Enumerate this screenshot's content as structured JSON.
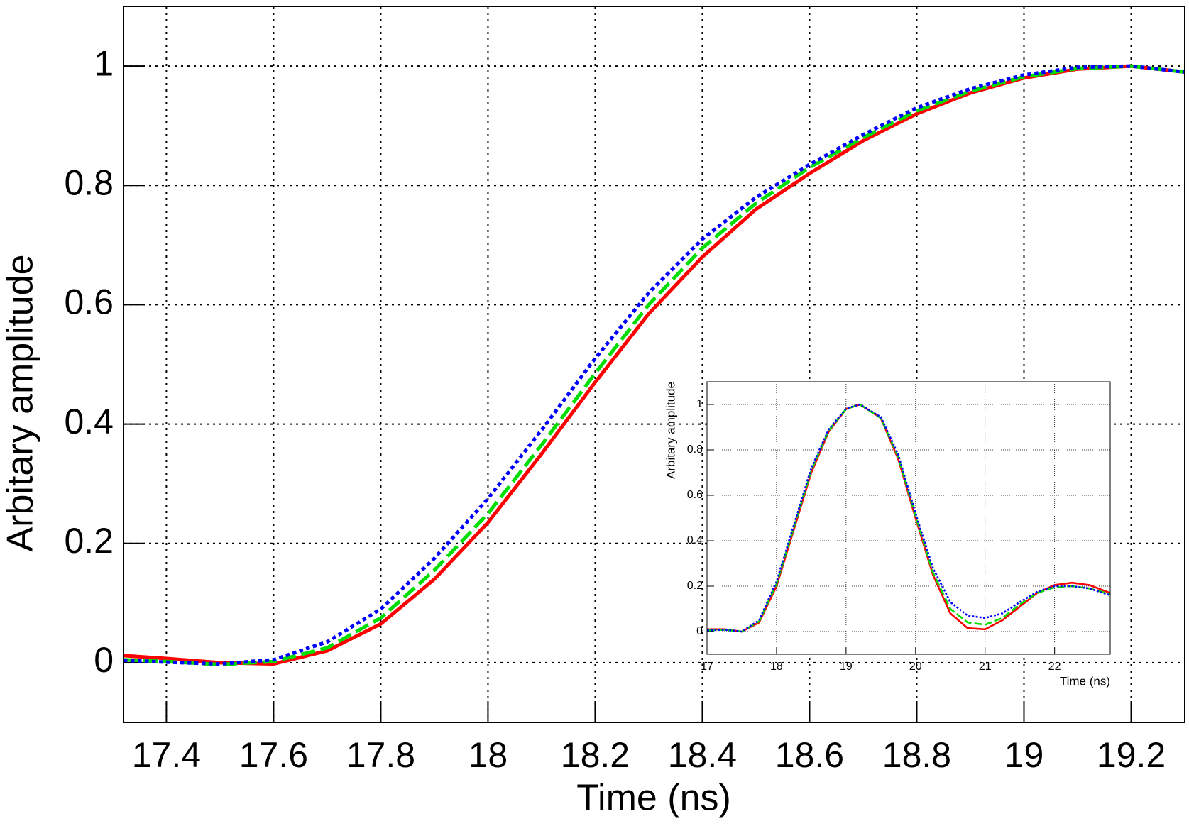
{
  "chart_data": [
    {
      "type": "line",
      "xlabel": "Time (ns)",
      "ylabel": "Arbitary amplitude",
      "xlim": [
        17.32,
        19.3
      ],
      "ylim": [
        -0.1,
        1.1
      ],
      "xticks": [
        17.4,
        17.6,
        17.8,
        18,
        18.2,
        18.4,
        18.6,
        18.8,
        19,
        19.2
      ],
      "yticks": [
        0,
        0.2,
        0.4,
        0.6,
        0.8,
        1
      ],
      "grid": true,
      "x": [
        17.32,
        17.4,
        17.5,
        17.6,
        17.7,
        17.8,
        17.9,
        18.0,
        18.1,
        18.2,
        18.3,
        18.4,
        18.5,
        18.6,
        18.7,
        18.8,
        18.9,
        19.0,
        19.1,
        19.2,
        19.3
      ],
      "series": [
        {
          "color": "#ff0000",
          "dash": "solid",
          "values": [
            0.012,
            0.007,
            0.0,
            -0.002,
            0.02,
            0.065,
            0.14,
            0.235,
            0.35,
            0.47,
            0.585,
            0.68,
            0.76,
            0.82,
            0.875,
            0.92,
            0.955,
            0.98,
            0.995,
            1.0,
            0.99
          ]
        },
        {
          "color": "#00dd00",
          "dash": "dashed",
          "values": [
            0.005,
            0.002,
            -0.003,
            0.002,
            0.025,
            0.075,
            0.155,
            0.25,
            0.365,
            0.485,
            0.6,
            0.695,
            0.77,
            0.83,
            0.88,
            0.925,
            0.958,
            0.982,
            0.996,
            1.0,
            0.99
          ]
        },
        {
          "color": "#0000ff",
          "dash": "dotted",
          "values": [
            0.004,
            0.001,
            -0.002,
            0.005,
            0.035,
            0.09,
            0.175,
            0.275,
            0.39,
            0.51,
            0.62,
            0.71,
            0.78,
            0.835,
            0.885,
            0.93,
            0.962,
            0.985,
            0.998,
            1.0,
            0.99
          ]
        }
      ]
    },
    {
      "type": "line",
      "xlabel": "Time (ns)",
      "ylabel": "Arbitary amplitude",
      "xlim": [
        17,
        22.8
      ],
      "ylim": [
        -0.1,
        1.1
      ],
      "xticks": [
        17,
        18,
        19,
        20,
        21,
        22
      ],
      "yticks": [
        0,
        0.2,
        0.4,
        0.6,
        0.8,
        1
      ],
      "grid": true,
      "x": [
        17,
        17.25,
        17.5,
        17.75,
        18,
        18.25,
        18.5,
        18.75,
        19,
        19.2,
        19.5,
        19.75,
        20,
        20.25,
        20.5,
        20.75,
        21,
        21.25,
        21.5,
        21.75,
        22,
        22.25,
        22.5,
        22.8
      ],
      "series": [
        {
          "color": "#ff0000",
          "dash": "solid",
          "values": [
            0.01,
            0.01,
            0.0,
            0.04,
            0.2,
            0.45,
            0.7,
            0.88,
            0.98,
            1.0,
            0.94,
            0.76,
            0.5,
            0.25,
            0.08,
            0.015,
            0.01,
            0.05,
            0.11,
            0.17,
            0.205,
            0.215,
            0.205,
            0.17
          ]
        },
        {
          "color": "#00dd00",
          "dash": "dashed",
          "values": [
            0.005,
            0.008,
            0.0,
            0.045,
            0.21,
            0.46,
            0.71,
            0.885,
            0.98,
            1.0,
            0.94,
            0.77,
            0.51,
            0.26,
            0.1,
            0.04,
            0.03,
            0.06,
            0.12,
            0.17,
            0.195,
            0.2,
            0.19,
            0.165
          ]
        },
        {
          "color": "#0000ff",
          "dash": "dotted",
          "values": [
            0.005,
            0.008,
            0.0,
            0.05,
            0.22,
            0.47,
            0.72,
            0.89,
            0.982,
            1.0,
            0.945,
            0.78,
            0.52,
            0.28,
            0.13,
            0.07,
            0.06,
            0.08,
            0.13,
            0.175,
            0.2,
            0.2,
            0.19,
            0.16
          ]
        }
      ]
    }
  ]
}
